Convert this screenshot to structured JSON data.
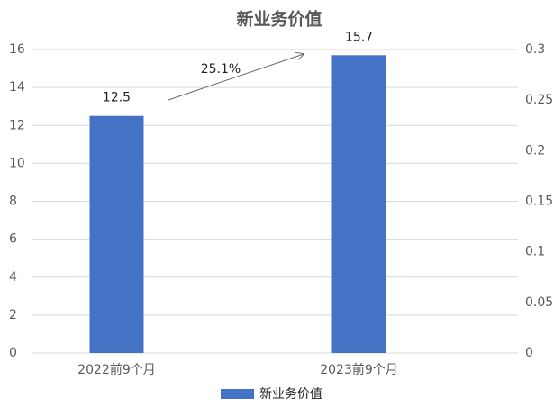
{
  "chart_data": {
    "type": "bar",
    "title": "新业务价值",
    "categories": [
      "2022前9个月",
      "2023前9个月"
    ],
    "series": [
      {
        "name": "新业务价值",
        "color": "#4472c4",
        "values": [
          12.5,
          15.7
        ]
      }
    ],
    "ylim": [
      0,
      16
    ],
    "yticks": [
      0,
      2,
      4,
      6,
      8,
      10,
      12,
      14,
      16
    ],
    "y2lim": [
      0,
      0.3
    ],
    "y2ticks": [
      0,
      0.05,
      0.1,
      0.15,
      0.2,
      0.25,
      0.3
    ],
    "annotation": "25.1%",
    "grid": true,
    "legend": "bottom"
  }
}
